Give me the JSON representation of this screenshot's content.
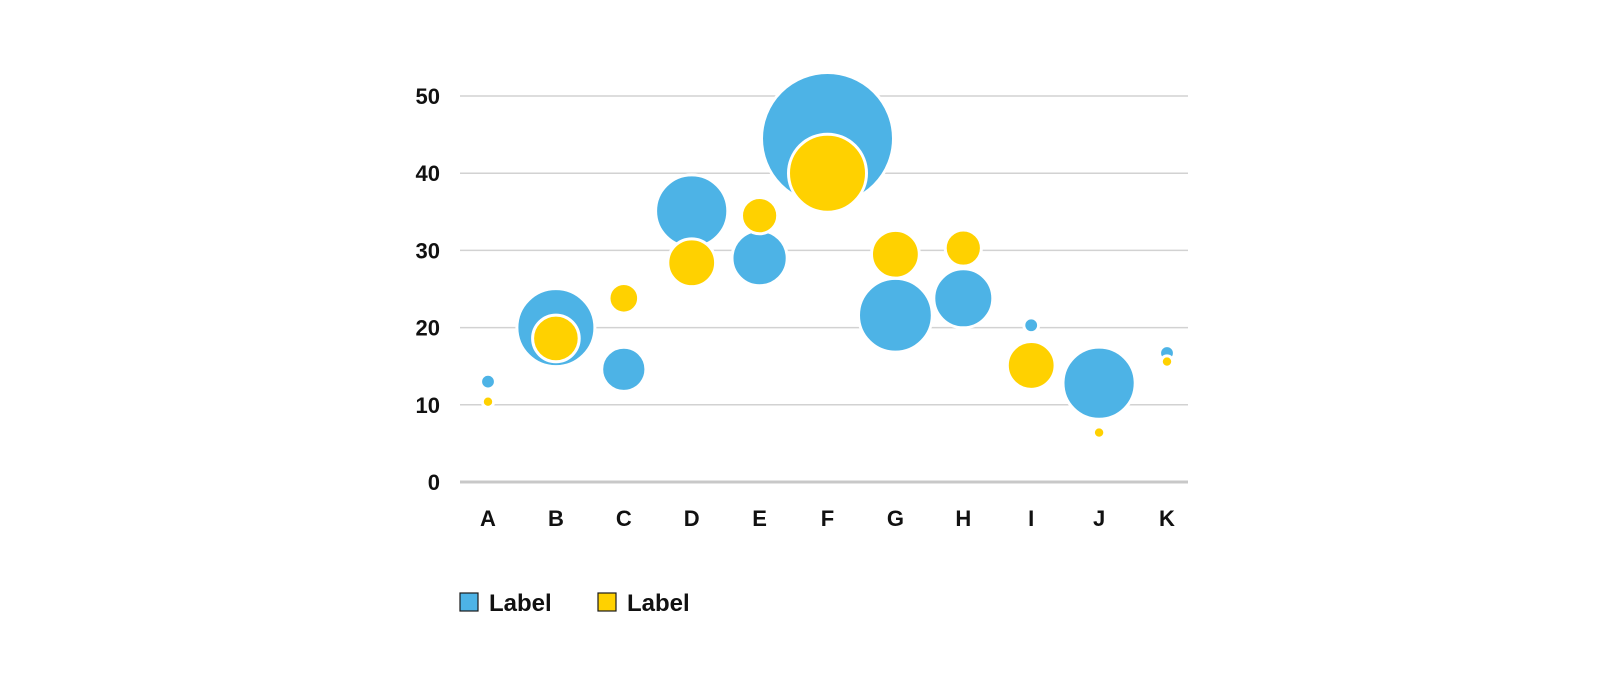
{
  "chart_data": {
    "type": "scatter",
    "subtype": "bubble",
    "title": "",
    "xlabel": "",
    "ylabel": "",
    "categories": [
      "A",
      "B",
      "C",
      "D",
      "E",
      "F",
      "G",
      "H",
      "I",
      "J",
      "K"
    ],
    "ylim": [
      0,
      50
    ],
    "yticks": [
      "0",
      "10",
      "20",
      "30",
      "40",
      "50"
    ],
    "grid": true,
    "legend_position": "bottom-left",
    "series": [
      {
        "name": "Label",
        "color": "#4DB3E6",
        "points": [
          {
            "x": "A",
            "y": 13,
            "size": 1
          },
          {
            "x": "B",
            "y": 20,
            "size": 28
          },
          {
            "x": "C",
            "y": 14.6,
            "size": 9
          },
          {
            "x": "D",
            "y": 35.1,
            "size": 24
          },
          {
            "x": "E",
            "y": 29,
            "size": 14
          },
          {
            "x": "F",
            "y": 44.5,
            "size": 80
          },
          {
            "x": "G",
            "y": 21.6,
            "size": 25
          },
          {
            "x": "H",
            "y": 23.8,
            "size": 16
          },
          {
            "x": "I",
            "y": 20.3,
            "size": 1
          },
          {
            "x": "J",
            "y": 12.8,
            "size": 24
          },
          {
            "x": "K",
            "y": 16.7,
            "size": 1
          }
        ]
      },
      {
        "name": "Label",
        "color": "#FFD100",
        "points": [
          {
            "x": "A",
            "y": 10.4,
            "size": 0.6
          },
          {
            "x": "B",
            "y": 18.6,
            "size": 10
          },
          {
            "x": "C",
            "y": 23.8,
            "size": 4
          },
          {
            "x": "D",
            "y": 28.4,
            "size": 10.5
          },
          {
            "x": "E",
            "y": 34.5,
            "size": 6
          },
          {
            "x": "F",
            "y": 40,
            "size": 28
          },
          {
            "x": "G",
            "y": 29.5,
            "size": 10.5
          },
          {
            "x": "H",
            "y": 30.3,
            "size": 6
          },
          {
            "x": "I",
            "y": 15.1,
            "size": 10.5
          },
          {
            "x": "J",
            "y": 6.4,
            "size": 0.6
          },
          {
            "x": "K",
            "y": 15.6,
            "size": 0.6
          }
        ]
      }
    ]
  }
}
